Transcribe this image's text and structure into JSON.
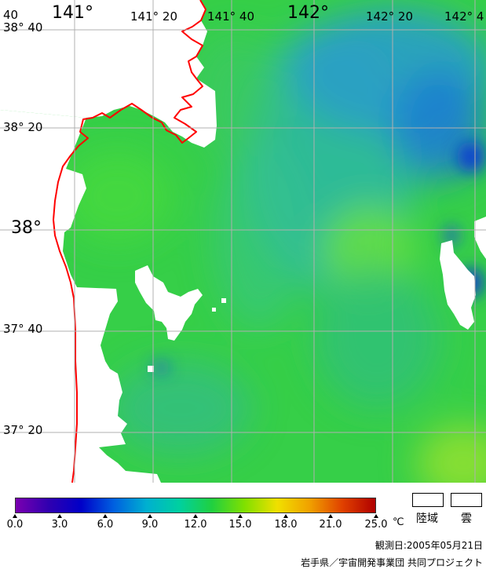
{
  "map": {
    "lon_labels": [
      {
        "text": "40",
        "style": "small"
      },
      {
        "text": "141°",
        "style": "big"
      },
      {
        "text": "141° 20",
        "style": "small"
      },
      {
        "text": "141° 40",
        "style": "small"
      },
      {
        "text": "142°",
        "style": "big"
      },
      {
        "text": "142° 20",
        "style": "small"
      },
      {
        "text": "142° 4",
        "style": "small"
      }
    ],
    "lat_labels": [
      {
        "text": "38° 40",
        "style": "small"
      },
      {
        "text": "38° 20",
        "style": "small"
      },
      {
        "text": "38°",
        "style": "big"
      },
      {
        "text": "37° 40",
        "style": "small"
      },
      {
        "text": "37° 20",
        "style": "small"
      }
    ],
    "colors": {
      "land": "#ffffff",
      "coastline": "#ff0000",
      "grid": "#b0b0b0",
      "sea_base": "#3cd24a"
    }
  },
  "colorbar": {
    "ticks": [
      "0.0",
      "3.0",
      "6.0",
      "9.0",
      "12.0",
      "15.0",
      "18.0",
      "21.0",
      "25.0"
    ],
    "unit": "℃",
    "stops": [
      "#7a00b0",
      "#3000b0",
      "#0000c8",
      "#0060e0",
      "#00b0d0",
      "#00d0a0",
      "#20d040",
      "#80e000",
      "#f0e000",
      "#f0a000",
      "#e04000",
      "#b00000"
    ]
  },
  "legend": {
    "land_label": "陸域",
    "cloud_label": "雲"
  },
  "footer": {
    "observation_date": "観測日:2005年05月21日",
    "credit": "岩手県／宇宙開発事業団 共同プロジェクト"
  }
}
